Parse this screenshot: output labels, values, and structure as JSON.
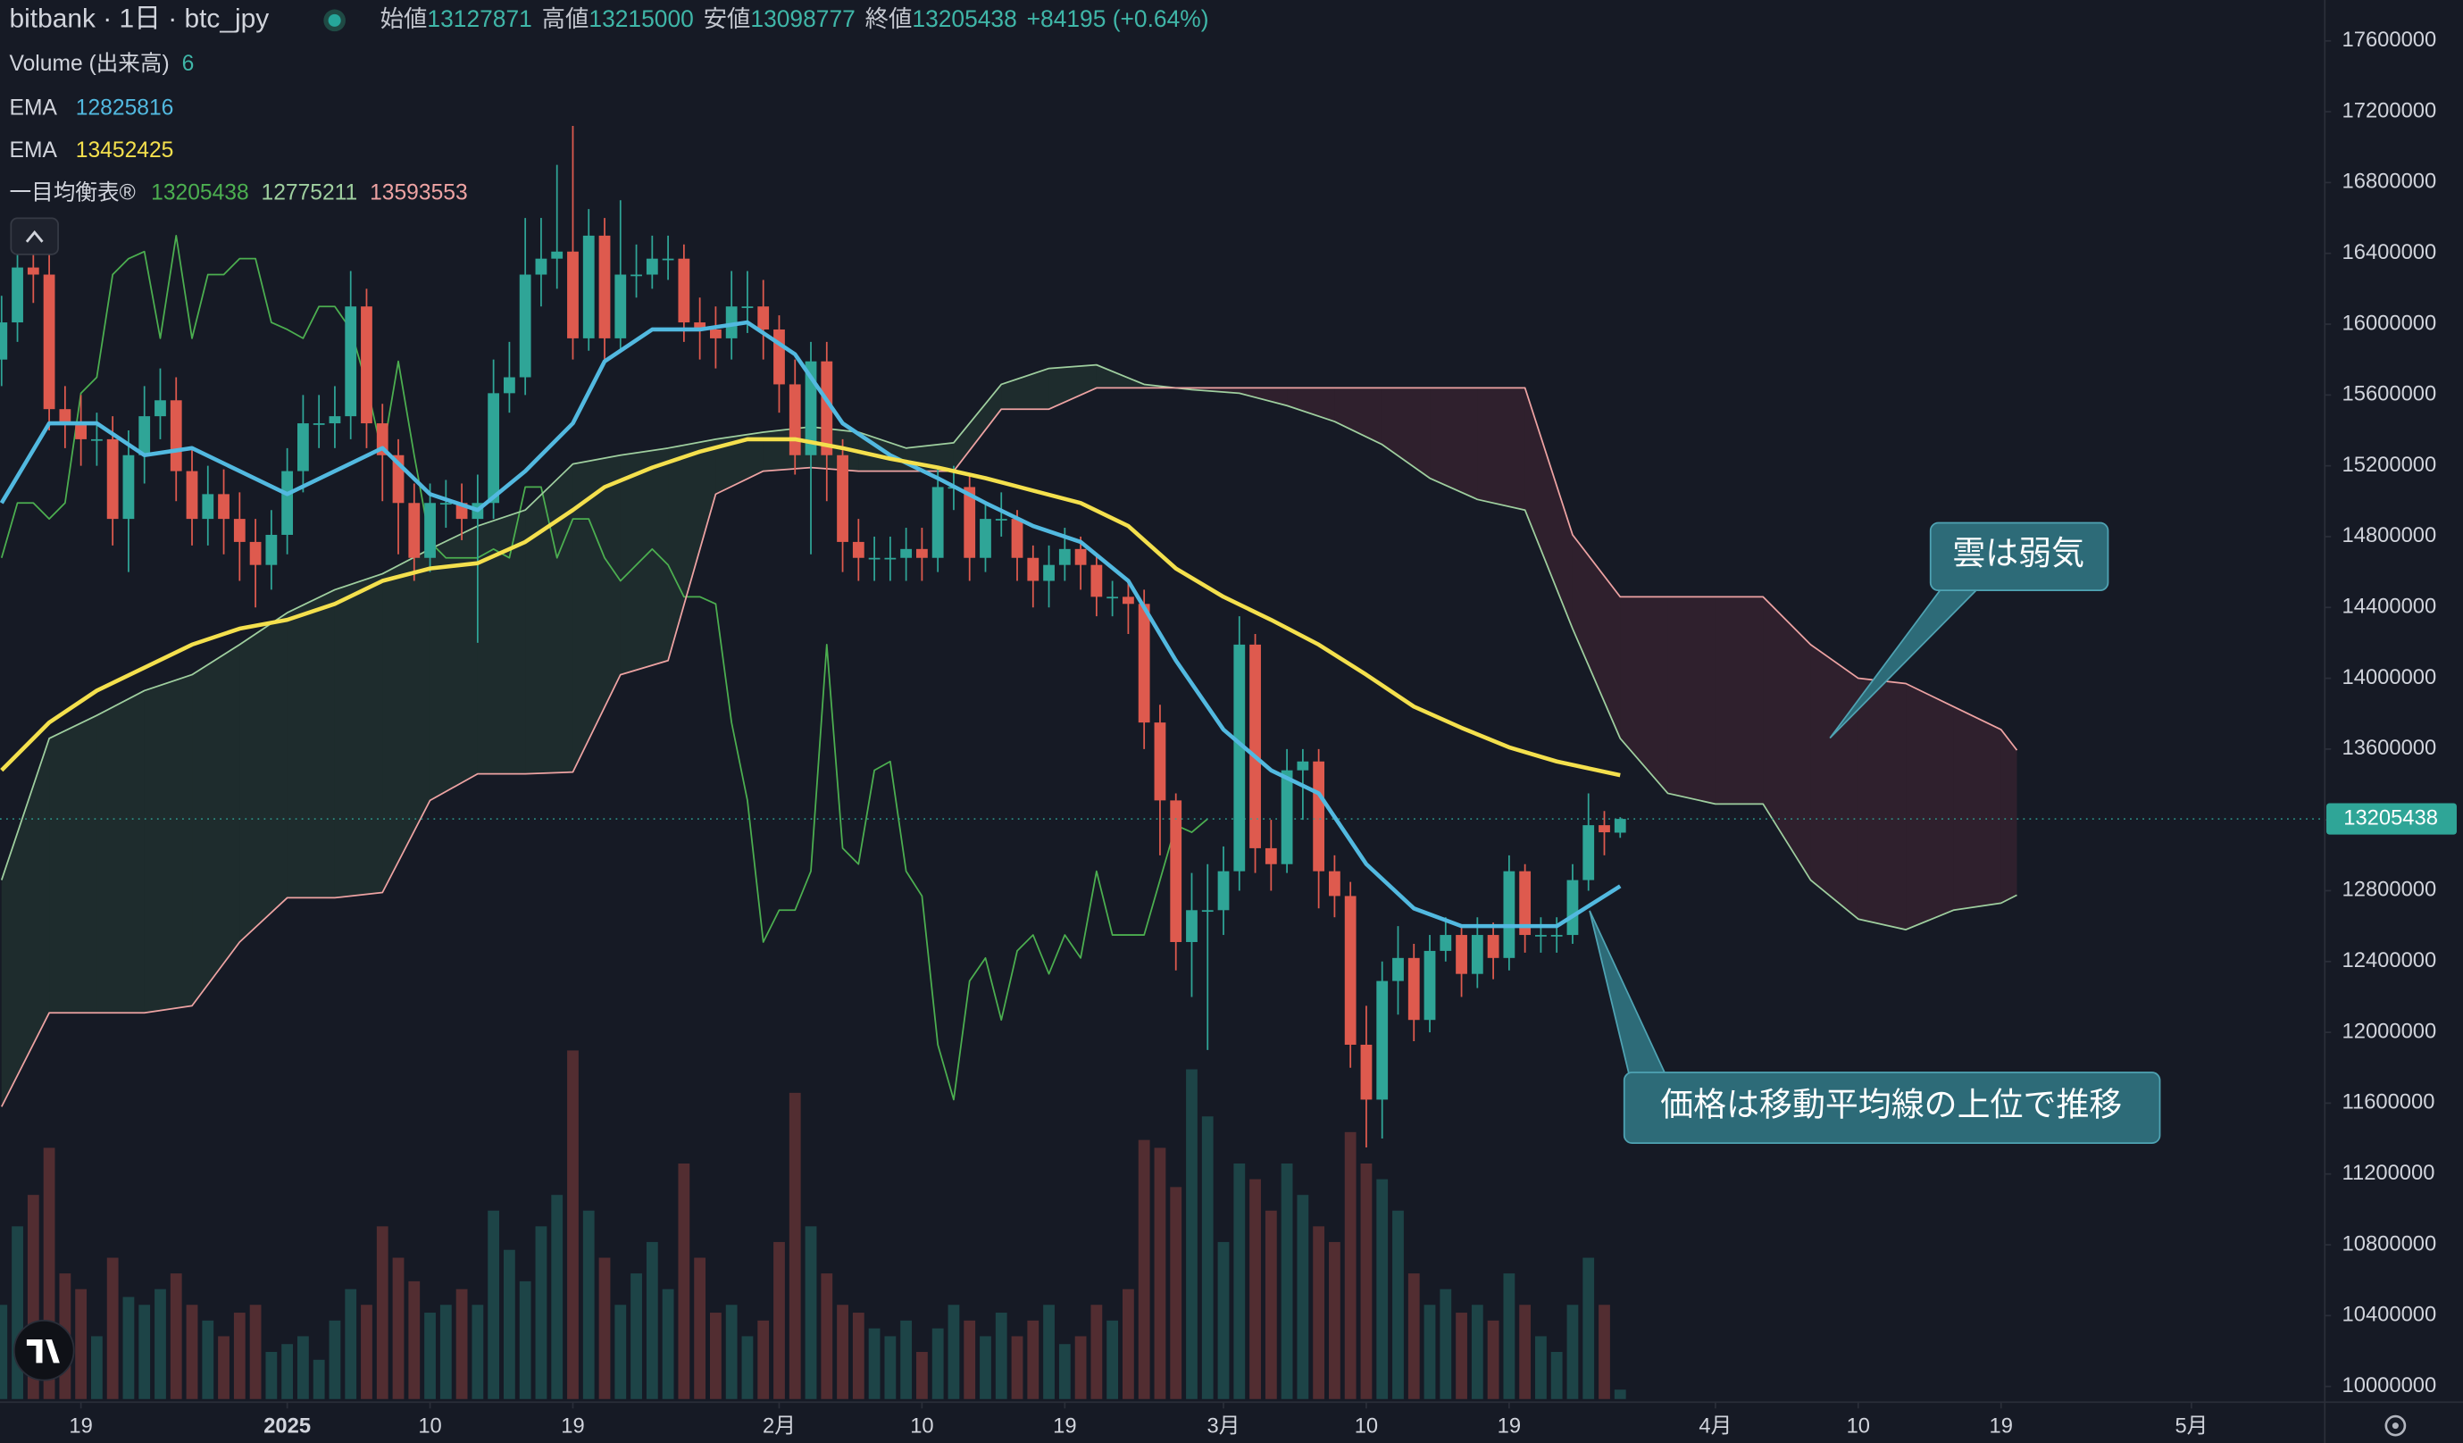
{
  "header": {
    "symbol": "bitbank · 1日 · btc_jpy",
    "open_label": "始値",
    "high_label": "高値",
    "low_label": "安値",
    "close_label": "終値",
    "change": "+84195 (+0.64%)"
  },
  "chart_data": {
    "type": "candlestick",
    "up_color": "#2fa597",
    "down_color": "#de5a4e",
    "x": [
      -18,
      -17,
      -16,
      -15,
      -14,
      -13,
      -12,
      -11,
      -10,
      -9,
      -8,
      -7,
      -6,
      -5,
      -4,
      -3,
      -2,
      -1,
      0,
      1,
      2,
      3,
      4,
      5,
      6,
      7,
      8,
      9,
      10,
      11,
      12,
      13,
      14,
      15,
      16,
      17,
      18,
      19,
      20,
      21,
      22,
      23,
      24,
      25,
      26,
      27,
      28,
      29,
      30,
      31,
      32,
      33,
      34,
      35,
      36,
      37,
      38,
      39,
      40,
      41,
      42,
      43,
      44,
      45,
      46,
      47,
      48,
      49,
      50,
      51,
      52,
      53,
      54,
      55,
      56,
      57,
      58,
      59,
      60,
      61,
      62,
      63,
      64,
      65,
      66,
      67,
      68,
      69,
      70,
      71,
      72,
      73,
      74,
      75,
      76,
      77,
      78,
      79,
      80,
      81,
      82,
      83,
      84
    ],
    "open": [
      15800000,
      16010000,
      16320000,
      16280000,
      15520000,
      15440000,
      15350000,
      15350000,
      14900000,
      15260000,
      15480000,
      15570000,
      15170000,
      14900000,
      15040000,
      14900000,
      14770000,
      14640000,
      14810000,
      15170000,
      15440000,
      15440000,
      15480000,
      16100000,
      15440000,
      15260000,
      14990000,
      14680000,
      14990000,
      14990000,
      14900000,
      14990000,
      15610000,
      15700000,
      16280000,
      16370000,
      16410000,
      15920000,
      16500000,
      15920000,
      16280000,
      16280000,
      16370000,
      16370000,
      16010000,
      15970000,
      15920000,
      16100000,
      16100000,
      15970000,
      15660000,
      15260000,
      15790000,
      15260000,
      14770000,
      14680000,
      14680000,
      14680000,
      14730000,
      14680000,
      15080000,
      15080000,
      14680000,
      14900000,
      14900000,
      14680000,
      14550000,
      14640000,
      14730000,
      14640000,
      14460000,
      14460000,
      14420000,
      13750000,
      13310000,
      12510000,
      12690000,
      12690000,
      12910000,
      14190000,
      13040000,
      12950000,
      13480000,
      13530000,
      12910000,
      12770000,
      11930000,
      11620000,
      12290000,
      12420000,
      12070000,
      12460000,
      12550000,
      12330000,
      12550000,
      12420000,
      12910000,
      12550000,
      12550000,
      12550000,
      12860000,
      13170000,
      13127871
    ],
    "high": [
      16160000,
      16470000,
      16450000,
      16400000,
      15650000,
      15600000,
      15500000,
      15480000,
      15400000,
      15650000,
      15750000,
      15700000,
      15300000,
      15200000,
      15180000,
      15050000,
      14900000,
      14950000,
      15300000,
      15600000,
      15600000,
      15650000,
      16300000,
      16200000,
      15550000,
      15350000,
      15100000,
      15100000,
      15120000,
      15100000,
      15150000,
      15800000,
      15900000,
      16600000,
      16600000,
      16900000,
      17120000,
      16650000,
      16600000,
      16700000,
      16450000,
      16500000,
      16500000,
      16450000,
      16150000,
      16100000,
      16300000,
      16300000,
      16250000,
      16050000,
      15800000,
      15900000,
      15900000,
      15350000,
      14900000,
      14800000,
      14800000,
      14850000,
      14850000,
      15200000,
      15200000,
      15150000,
      15000000,
      15050000,
      14950000,
      14750000,
      14750000,
      14850000,
      14800000,
      14700000,
      14550000,
      14550000,
      14500000,
      13850000,
      13350000,
      12900000,
      12950000,
      13050000,
      14350000,
      14250000,
      13200000,
      13600000,
      13600000,
      13600000,
      13000000,
      12850000,
      12150000,
      12400000,
      12600000,
      12500000,
      12550000,
      12650000,
      12600000,
      12650000,
      12620000,
      13000000,
      12950000,
      12650000,
      12650000,
      12950000,
      13350000,
      13250000,
      13215000
    ],
    "low": [
      15650000,
      15900000,
      16120000,
      15400000,
      15300000,
      15200000,
      15200000,
      14750000,
      14600000,
      15100000,
      15350000,
      15000000,
      14750000,
      14750000,
      14700000,
      14550000,
      14400000,
      14500000,
      14700000,
      15050000,
      15300000,
      15300000,
      15350000,
      15300000,
      15000000,
      14700000,
      14550000,
      14600000,
      14850000,
      14780000,
      14200000,
      14900000,
      15500000,
      15600000,
      16100000,
      16200000,
      15800000,
      15850000,
      15800000,
      15850000,
      16150000,
      16200000,
      16250000,
      15900000,
      15800000,
      15750000,
      15800000,
      15950000,
      15800000,
      15500000,
      15150000,
      14700000,
      15000000,
      14600000,
      14550000,
      14550000,
      14550000,
      14550000,
      14550000,
      14600000,
      14950000,
      14550000,
      14600000,
      14800000,
      14550000,
      14400000,
      14400000,
      14550000,
      14500000,
      14350000,
      14350000,
      14250000,
      13600000,
      13000000,
      12350000,
      12200000,
      11900000,
      12550000,
      12800000,
      12900000,
      12800000,
      12900000,
      13200000,
      12700000,
      12650000,
      11800000,
      11350000,
      11400000,
      12100000,
      11950000,
      12000000,
      12400000,
      12200000,
      12250000,
      12300000,
      12350000,
      12450000,
      12450000,
      12450000,
      12500000,
      12800000,
      13000000,
      13098777
    ],
    "close": [
      16010000,
      16320000,
      16280000,
      15520000,
      15440000,
      15350000,
      15350000,
      14900000,
      15260000,
      15480000,
      15570000,
      15170000,
      14900000,
      15040000,
      14900000,
      14770000,
      14640000,
      14810000,
      15170000,
      15440000,
      15440000,
      15480000,
      16100000,
      15440000,
      15260000,
      14990000,
      14680000,
      14990000,
      14990000,
      14900000,
      14990000,
      15610000,
      15700000,
      16280000,
      16370000,
      16410000,
      15920000,
      16500000,
      15920000,
      16280000,
      16280000,
      16370000,
      16370000,
      16010000,
      15970000,
      15920000,
      16100000,
      16100000,
      15970000,
      15660000,
      15260000,
      15790000,
      15260000,
      14770000,
      14680000,
      14680000,
      14680000,
      14730000,
      14680000,
      15080000,
      15080000,
      14680000,
      14900000,
      14900000,
      14680000,
      14550000,
      14640000,
      14730000,
      14640000,
      14460000,
      14460000,
      14420000,
      13750000,
      13310000,
      12510000,
      12690000,
      12690000,
      12910000,
      14190000,
      13040000,
      12950000,
      13480000,
      13530000,
      12910000,
      12770000,
      11930000,
      11620000,
      12290000,
      12420000,
      12070000,
      12460000,
      12550000,
      12330000,
      12550000,
      12420000,
      12910000,
      12550000,
      12550000,
      12550000,
      12860000,
      13170000,
      13130000,
      13205438
    ],
    "volume": {
      "name": "Volume (出来高)",
      "values": [
        60,
        110,
        130,
        160,
        80,
        70,
        40,
        90,
        65,
        60,
        70,
        80,
        60,
        50,
        40,
        55,
        60,
        30,
        35,
        40,
        25,
        50,
        70,
        60,
        110,
        90,
        75,
        55,
        60,
        70,
        60,
        120,
        95,
        75,
        110,
        130,
        222,
        120,
        90,
        60,
        80,
        100,
        70,
        150,
        90,
        55,
        60,
        40,
        50,
        100,
        195,
        110,
        80,
        60,
        55,
        45,
        40,
        50,
        30,
        45,
        60,
        50,
        40,
        55,
        40,
        50,
        60,
        35,
        40,
        60,
        50,
        70,
        165,
        160,
        135,
        210,
        180,
        100,
        150,
        140,
        120,
        150,
        130,
        110,
        100,
        170,
        150,
        140,
        120,
        80,
        60,
        70,
        55,
        60,
        50,
        80,
        60,
        40,
        30,
        60,
        90,
        60,
        6
      ]
    },
    "series": [
      {
        "name": "EMA",
        "color": "#52b9e0",
        "x": [
          -18,
          -15,
          -12,
          -9,
          -6,
          -3,
          0,
          3,
          6,
          9,
          12,
          15,
          18,
          20,
          23,
          26,
          29,
          32,
          35,
          38,
          41,
          44,
          47,
          50,
          53,
          56,
          59,
          62,
          65,
          68,
          71,
          74,
          77,
          80,
          84
        ],
        "values": [
          14990000,
          15440000,
          15440000,
          15260000,
          15300000,
          15170000,
          15040000,
          15170000,
          15300000,
          15040000,
          14950000,
          15170000,
          15440000,
          15790000,
          15970000,
          15970000,
          16010000,
          15830000,
          15440000,
          15260000,
          15130000,
          14990000,
          14860000,
          14770000,
          14550000,
          14100000,
          13710000,
          13480000,
          13350000,
          12950000,
          12700000,
          12600000,
          12600000,
          12600000,
          12825816
        ]
      },
      {
        "name": "EMA",
        "color": "#f4e04d",
        "x": [
          -18,
          -15,
          -12,
          -9,
          -6,
          -3,
          0,
          3,
          6,
          9,
          12,
          15,
          18,
          20,
          23,
          26,
          29,
          32,
          35,
          38,
          41,
          44,
          47,
          50,
          53,
          56,
          59,
          62,
          65,
          68,
          71,
          74,
          77,
          80,
          84
        ],
        "values": [
          13480000,
          13750000,
          13930000,
          14060000,
          14190000,
          14280000,
          14330000,
          14420000,
          14550000,
          14620000,
          14650000,
          14770000,
          14950000,
          15080000,
          15190000,
          15280000,
          15350000,
          15350000,
          15300000,
          15240000,
          15190000,
          15130000,
          15060000,
          14990000,
          14860000,
          14620000,
          14460000,
          14330000,
          14190000,
          14020000,
          13840000,
          13720000,
          13610000,
          13530000,
          13452425
        ]
      }
    ],
    "ichimoku": {
      "name": "一目均衡表®",
      "lagging": {
        "color": "#4caf50",
        "x": [
          -18,
          -17,
          -16,
          -15,
          -14,
          -13,
          -12,
          -11,
          -10,
          -9,
          -8,
          -7,
          -6,
          -5,
          -4,
          -3,
          -2,
          -1,
          0,
          1,
          2,
          3,
          4,
          5,
          6,
          7,
          8,
          9,
          10,
          11,
          12,
          13,
          14,
          15,
          16,
          17,
          18,
          19,
          20,
          21,
          22,
          23,
          24,
          25,
          26,
          27,
          28,
          29,
          30,
          31,
          32,
          33,
          34,
          35,
          36,
          37,
          38,
          39,
          40,
          41,
          42,
          43,
          44,
          45,
          46,
          47,
          48,
          49,
          50,
          51,
          52,
          53,
          54,
          55,
          56,
          57,
          58
        ],
        "values": [
          14680000,
          14990000,
          14990000,
          14900000,
          14990000,
          15610000,
          15700000,
          16280000,
          16370000,
          16410000,
          15920000,
          16500000,
          15920000,
          16280000,
          16280000,
          16370000,
          16370000,
          16010000,
          15970000,
          15920000,
          16100000,
          16100000,
          15970000,
          15660000,
          15260000,
          15790000,
          15260000,
          14770000,
          14680000,
          14680000,
          14680000,
          14730000,
          14680000,
          15080000,
          15080000,
          14680000,
          14900000,
          14900000,
          14680000,
          14550000,
          14640000,
          14730000,
          14640000,
          14460000,
          14460000,
          14420000,
          13750000,
          13310000,
          12510000,
          12690000,
          12690000,
          12910000,
          14190000,
          13040000,
          12950000,
          13480000,
          13530000,
          12910000,
          12770000,
          11930000,
          11620000,
          12290000,
          12420000,
          12070000,
          12460000,
          12550000,
          12330000,
          12550000,
          12420000,
          12910000,
          12550000,
          12550000,
          12550000,
          12860000,
          13170000,
          13130000,
          13205438
        ]
      },
      "span_a": {
        "color": "#9fcf9f",
        "x": [
          -18,
          -15,
          -12,
          -9,
          -6,
          -3,
          0,
          3,
          6,
          9,
          12,
          15,
          18,
          21,
          24,
          27,
          30,
          33,
          36,
          39,
          42,
          45,
          48,
          51,
          54,
          57,
          60,
          63,
          66,
          69,
          72,
          75,
          78,
          81,
          84,
          87,
          90,
          93,
          96,
          99,
          102,
          105,
          108,
          109
        ],
        "values": [
          12860000,
          13660000,
          13790000,
          13930000,
          14020000,
          14190000,
          14370000,
          14500000,
          14590000,
          14730000,
          14860000,
          14950000,
          15210000,
          15260000,
          15300000,
          15350000,
          15390000,
          15420000,
          15390000,
          15300000,
          15330000,
          15660000,
          15750000,
          15770000,
          15660000,
          15630000,
          15610000,
          15540000,
          15450000,
          15320000,
          15130000,
          15010000,
          14950000,
          14280000,
          13660000,
          13350000,
          13290000,
          13290000,
          12860000,
          12640000,
          12580000,
          12690000,
          12730000,
          12775211
        ]
      },
      "span_b": {
        "color": "#eea3a3",
        "x": [
          -18,
          -15,
          -12,
          -9,
          -6,
          -3,
          0,
          3,
          6,
          9,
          12,
          15,
          18,
          21,
          24,
          27,
          30,
          33,
          36,
          39,
          42,
          45,
          48,
          51,
          54,
          57,
          60,
          63,
          66,
          69,
          72,
          75,
          78,
          81,
          84,
          87,
          90,
          93,
          96,
          99,
          102,
          105,
          108,
          109
        ],
        "values": [
          11580000,
          12110000,
          12110000,
          12110000,
          12150000,
          12510000,
          12760000,
          12760000,
          12790000,
          13310000,
          13460000,
          13460000,
          13470000,
          14020000,
          14100000,
          15040000,
          15170000,
          15190000,
          15170000,
          15170000,
          15170000,
          15520000,
          15520000,
          15640000,
          15640000,
          15640000,
          15640000,
          15640000,
          15640000,
          15640000,
          15640000,
          15640000,
          15640000,
          14810000,
          14460000,
          14460000,
          14460000,
          14460000,
          14190000,
          14000000,
          13970000,
          13840000,
          13710000,
          13593553
        ]
      }
    },
    "xlim": [
      -18.1,
      128.4
    ],
    "xticks": [
      {
        "value": -13,
        "label": "19"
      },
      {
        "value": 0,
        "label": "2025"
      },
      {
        "value": 9,
        "label": "10"
      },
      {
        "value": 18,
        "label": "19"
      },
      {
        "value": 31,
        "label": "2月"
      },
      {
        "value": 40,
        "label": "10"
      },
      {
        "value": 49,
        "label": "19"
      },
      {
        "value": 59,
        "label": "3月"
      },
      {
        "value": 68,
        "label": "10"
      },
      {
        "value": 77,
        "label": "19"
      },
      {
        "value": 90,
        "label": "4月"
      },
      {
        "value": 99,
        "label": "10"
      },
      {
        "value": 108,
        "label": "19"
      },
      {
        "value": 120,
        "label": "5月"
      }
    ],
    "ylim": [
      9911000,
      17831000
    ],
    "yticks": [
      10000000,
      10400000,
      10800000,
      11200000,
      11600000,
      12000000,
      12400000,
      12800000,
      13200000,
      13600000,
      14000000,
      14400000,
      14800000,
      15200000,
      15600000,
      16000000,
      16400000,
      16800000,
      17200000,
      17600000
    ],
    "annotations": [
      {
        "text": "雲は弱気"
      },
      {
        "text": "価格は移動平均線の上位で推移"
      }
    ]
  }
}
